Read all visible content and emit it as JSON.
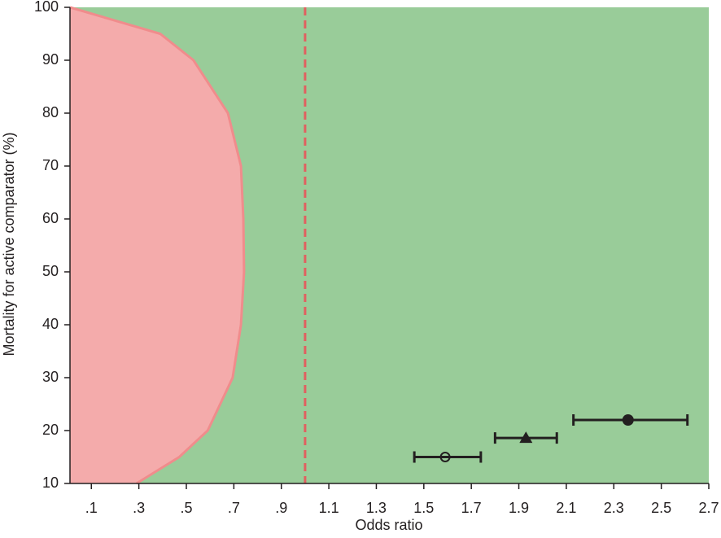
{
  "chart_data": {
    "type": "scatter",
    "x_label": "Odds ratio",
    "y_label": "Mortality for active comparator (%)",
    "xlim": [
      0.01,
      2.7
    ],
    "ylim": [
      10,
      100
    ],
    "xticks": [
      {
        "value": 0.1,
        "label": ".1"
      },
      {
        "value": 0.3,
        "label": ".3"
      },
      {
        "value": 0.5,
        "label": ".5"
      },
      {
        "value": 0.7,
        "label": ".7"
      },
      {
        "value": 0.9,
        "label": ".9"
      },
      1.1,
      1.3,
      1.5,
      1.7,
      1.9,
      2.1,
      2.3,
      2.5,
      2.7
    ],
    "yticks": [
      10,
      20,
      30,
      40,
      50,
      60,
      70,
      80,
      90,
      100
    ],
    "background": "#99cc99",
    "region": {
      "color": "#f4abab",
      "edge_color": "#f08c8c",
      "x": [
        0.01,
        0.39,
        0.53,
        0.675,
        0.73,
        0.74,
        0.743,
        0.73,
        0.695,
        0.59,
        0.47,
        0.29
      ],
      "y": [
        100,
        95,
        90,
        80,
        70,
        60,
        50,
        40,
        30,
        20,
        15,
        10
      ]
    },
    "reference_line": {
      "x": 1.0,
      "color": "#e06060"
    },
    "series": [
      {
        "marker": "open-circle",
        "color": "#231f20",
        "x": [
          1.59
        ],
        "values": [
          15
        ],
        "ci_low": [
          1.46
        ],
        "ci_high": [
          1.74
        ]
      },
      {
        "marker": "triangle",
        "color": "#231f20",
        "x": [
          1.93
        ],
        "values": [
          18.6
        ],
        "ci_low": [
          1.8
        ],
        "ci_high": [
          2.06
        ]
      },
      {
        "marker": "circle",
        "color": "#231f20",
        "x": [
          2.36
        ],
        "values": [
          22
        ],
        "ci_low": [
          2.13
        ],
        "ci_high": [
          2.61
        ]
      }
    ]
  }
}
